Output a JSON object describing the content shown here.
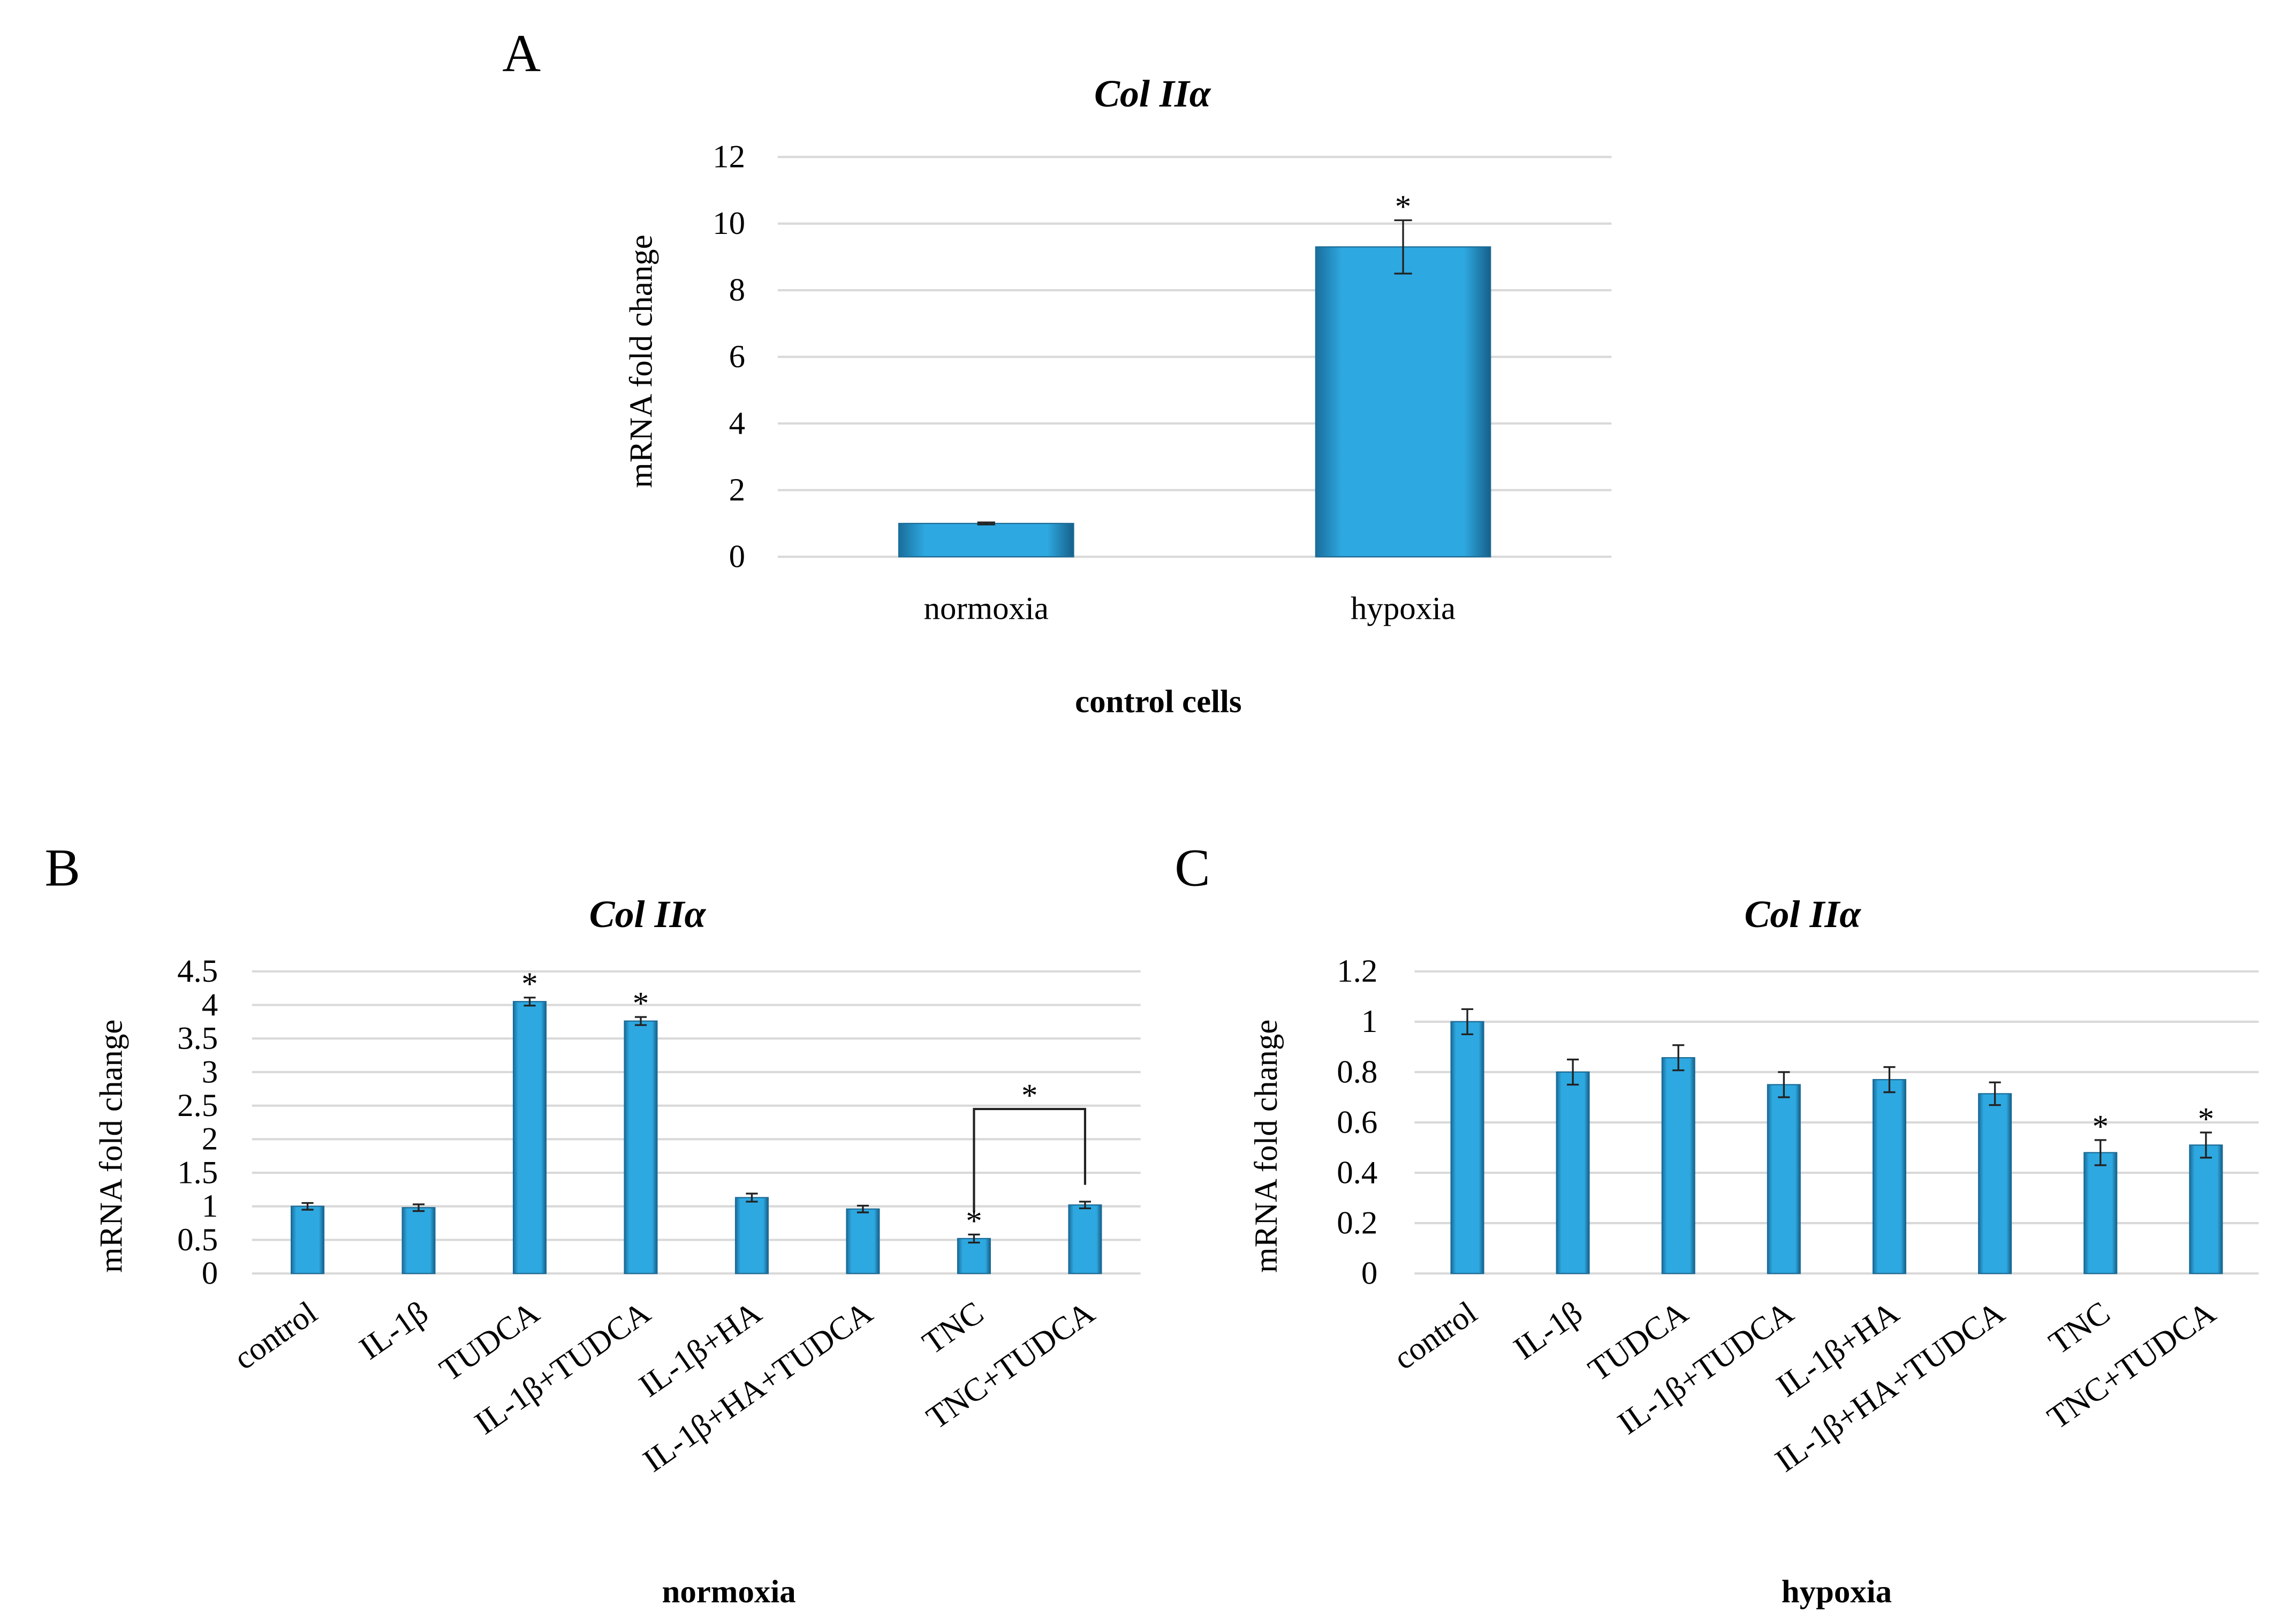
{
  "chart_data": [
    {
      "panel": "A",
      "type": "bar",
      "title": "Col IIα",
      "xlabel": "control cells",
      "ylabel": "mRNA fold change",
      "ylim": [
        0,
        12
      ],
      "yticks": [
        "0",
        "2",
        "4",
        "6",
        "8",
        "10",
        "12"
      ],
      "categories": [
        "normoxia",
        "hypoxia"
      ],
      "values": [
        1.0,
        9.3
      ],
      "errors": [
        0.03,
        0.8
      ],
      "significance": [
        "",
        "*"
      ],
      "grid": true,
      "color": "#2EA8E0"
    },
    {
      "panel": "B",
      "type": "bar",
      "title": "Col IIα",
      "xlabel": "normoxia",
      "ylabel": "mRNA fold change",
      "ylim": [
        0,
        4.5
      ],
      "yticks": [
        "0",
        "0.5",
        "1",
        "1.5",
        "2",
        "2.5",
        "3",
        "3.5",
        "4",
        "4.5"
      ],
      "categories": [
        "control",
        "IL-1β",
        "TUDCA",
        "IL-1β+TUDCA",
        "IL-1β+HA",
        "IL-1β+HA+TUDCA",
        "TNC",
        "TNC+TUDCA"
      ],
      "values": [
        1.0,
        0.98,
        4.05,
        3.76,
        1.13,
        0.96,
        0.52,
        1.02
      ],
      "errors": [
        0.05,
        0.05,
        0.06,
        0.06,
        0.06,
        0.05,
        0.06,
        0.05
      ],
      "significance": [
        "",
        "",
        "*",
        "*",
        "",
        "",
        "*",
        ""
      ],
      "bracket": {
        "from": "TNC",
        "to": "TNC+TUDCA",
        "label": "*",
        "level": 2.45
      },
      "grid": true,
      "color": "#2EA8E0"
    },
    {
      "panel": "C",
      "type": "bar",
      "title": "Col IIα",
      "xlabel": "hypoxia",
      "ylabel": "mRNA fold change",
      "ylim": [
        0,
        1.2
      ],
      "yticks": [
        "0",
        "0.2",
        "0.4",
        "0.6",
        "0.8",
        "1",
        "1.2"
      ],
      "categories": [
        "control",
        "IL-1β",
        "TUDCA",
        "IL-1β+TUDCA",
        "IL-1β+HA",
        "IL-1β+HA+TUDCA",
        "TNC",
        "TNC+TUDCA"
      ],
      "values": [
        1.0,
        0.8,
        0.857,
        0.75,
        0.77,
        0.714,
        0.48,
        0.51
      ],
      "errors": [
        0.05,
        0.05,
        0.05,
        0.05,
        0.05,
        0.045,
        0.05,
        0.05
      ],
      "significance": [
        "",
        "",
        "",
        "",
        "",
        "",
        "*",
        "*"
      ],
      "grid": true,
      "color": "#2EA8E0"
    }
  ]
}
